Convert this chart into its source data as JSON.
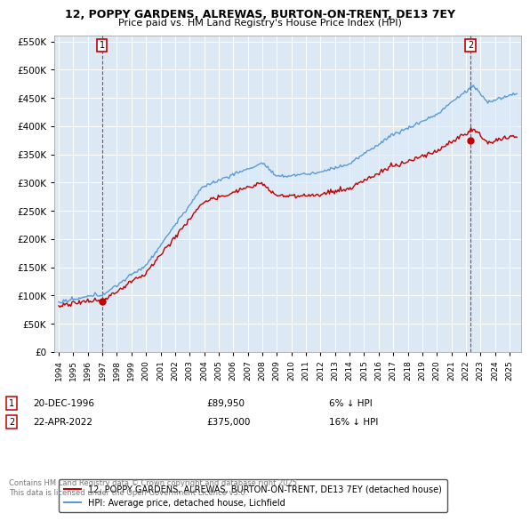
{
  "title": "12, POPPY GARDENS, ALREWAS, BURTON-ON-TRENT, DE13 7EY",
  "subtitle": "Price paid vs. HM Land Registry's House Price Index (HPI)",
  "legend_line1": "12, POPPY GARDENS, ALREWAS, BURTON-ON-TRENT, DE13 7EY (detached house)",
  "legend_line2": "HPI: Average price, detached house, Lichfield",
  "annotation1_label": "1",
  "annotation1_date": "20-DEC-1996",
  "annotation1_price": "£89,950",
  "annotation1_note": "6% ↓ HPI",
  "annotation2_label": "2",
  "annotation2_date": "22-APR-2022",
  "annotation2_price": "£375,000",
  "annotation2_note": "16% ↓ HPI",
  "footnote": "Contains HM Land Registry data © Crown copyright and database right 2025.\nThis data is licensed under the Open Government Licence v3.0.",
  "sale1_year": 1996.97,
  "sale1_price": 89950,
  "sale2_year": 2022.31,
  "sale2_price": 375000,
  "hpi_color": "#5b9bd5",
  "hpi_fill_color": "#dceaf7",
  "price_color": "#c00000",
  "bg_color": "#dce9f5",
  "grid_color": "#ffffff",
  "ylim_max": 560000,
  "ylim_min": 0,
  "ytick_step": 50000
}
